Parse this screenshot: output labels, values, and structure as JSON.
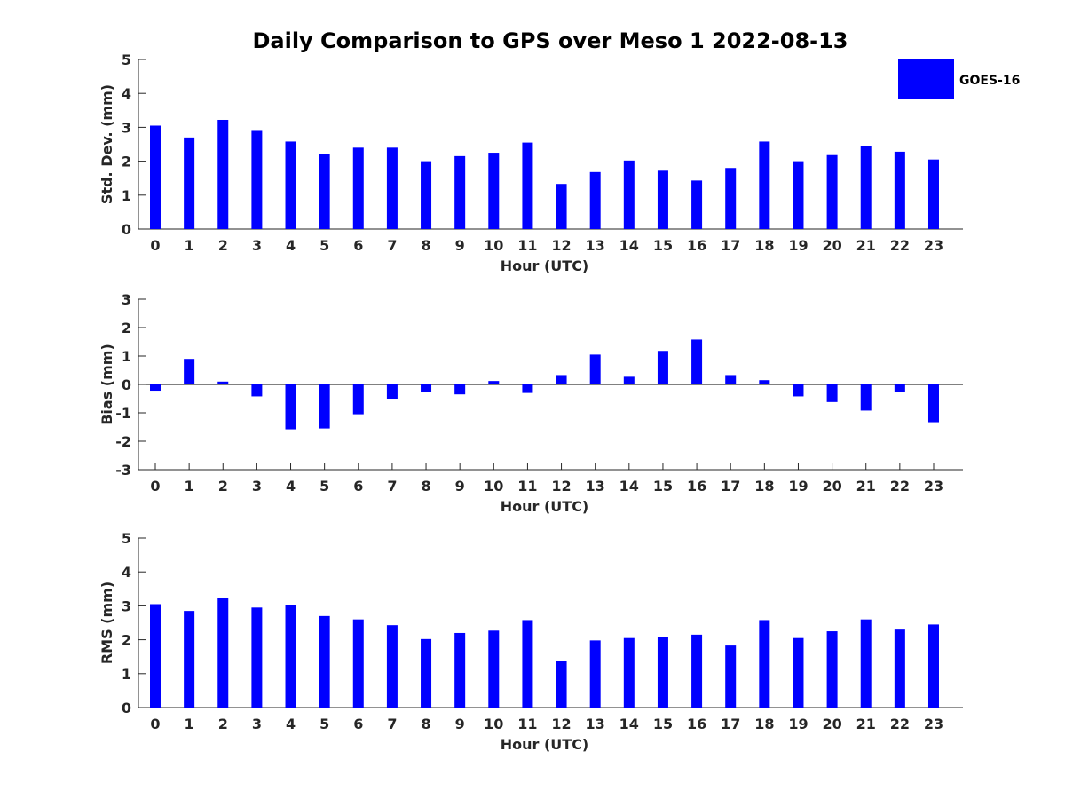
{
  "chart_data": {
    "title": "Daily Comparison to GPS over Meso 1 2022-08-13",
    "legend": {
      "label": "GOES-16",
      "color": "#0000ff",
      "placement": "top-right"
    },
    "bar_color": "#0000ff",
    "panels": [
      {
        "type": "bar",
        "ylabel": "Std. Dev. (mm)",
        "xlabel": "Hour (UTC)",
        "ylim": [
          0,
          5
        ],
        "yticks": [
          0,
          1,
          2,
          3,
          4,
          5
        ],
        "categories": [
          "0",
          "1",
          "2",
          "3",
          "4",
          "5",
          "6",
          "7",
          "8",
          "9",
          "10",
          "11",
          "12",
          "13",
          "14",
          "15",
          "16",
          "17",
          "18",
          "19",
          "20",
          "21",
          "22",
          "23"
        ],
        "series": [
          {
            "name": "GOES-16",
            "values": [
              3.05,
              2.7,
              3.22,
              2.92,
              2.58,
              2.2,
              2.4,
              2.4,
              2.0,
              2.15,
              2.25,
              2.55,
              1.33,
              1.68,
              2.02,
              1.72,
              1.43,
              1.8,
              2.58,
              2.0,
              2.18,
              2.45,
              2.28,
              2.05
            ]
          }
        ]
      },
      {
        "type": "bar",
        "ylabel": "Bias (mm)",
        "xlabel": "Hour (UTC)",
        "ylim": [
          -3,
          3
        ],
        "yticks": [
          -3,
          -2,
          -1,
          0,
          1,
          2,
          3
        ],
        "categories": [
          "0",
          "1",
          "2",
          "3",
          "4",
          "5",
          "6",
          "7",
          "8",
          "9",
          "10",
          "11",
          "12",
          "13",
          "14",
          "15",
          "16",
          "17",
          "18",
          "19",
          "20",
          "21",
          "22",
          "23"
        ],
        "series": [
          {
            "name": "GOES-16",
            "values": [
              -0.22,
              0.9,
              0.1,
              -0.42,
              -1.58,
              -1.55,
              -1.05,
              -0.5,
              -0.27,
              -0.35,
              0.12,
              -0.3,
              0.33,
              1.05,
              0.27,
              1.18,
              1.58,
              0.33,
              0.15,
              -0.42,
              -0.62,
              -0.92,
              -0.27,
              -1.33
            ]
          }
        ]
      },
      {
        "type": "bar",
        "ylabel": "RMS (mm)",
        "xlabel": "Hour (UTC)",
        "ylim": [
          0,
          5
        ],
        "yticks": [
          0,
          1,
          2,
          3,
          4,
          5
        ],
        "categories": [
          "0",
          "1",
          "2",
          "3",
          "4",
          "5",
          "6",
          "7",
          "8",
          "9",
          "10",
          "11",
          "12",
          "13",
          "14",
          "15",
          "16",
          "17",
          "18",
          "19",
          "20",
          "21",
          "22",
          "23"
        ],
        "series": [
          {
            "name": "GOES-16",
            "values": [
              3.05,
              2.85,
              3.22,
              2.95,
              3.03,
              2.7,
              2.6,
              2.43,
              2.02,
              2.2,
              2.27,
              2.58,
              1.37,
              1.98,
              2.05,
              2.08,
              2.15,
              1.83,
              2.58,
              2.05,
              2.25,
              2.6,
              2.3,
              2.45
            ]
          }
        ]
      }
    ]
  }
}
